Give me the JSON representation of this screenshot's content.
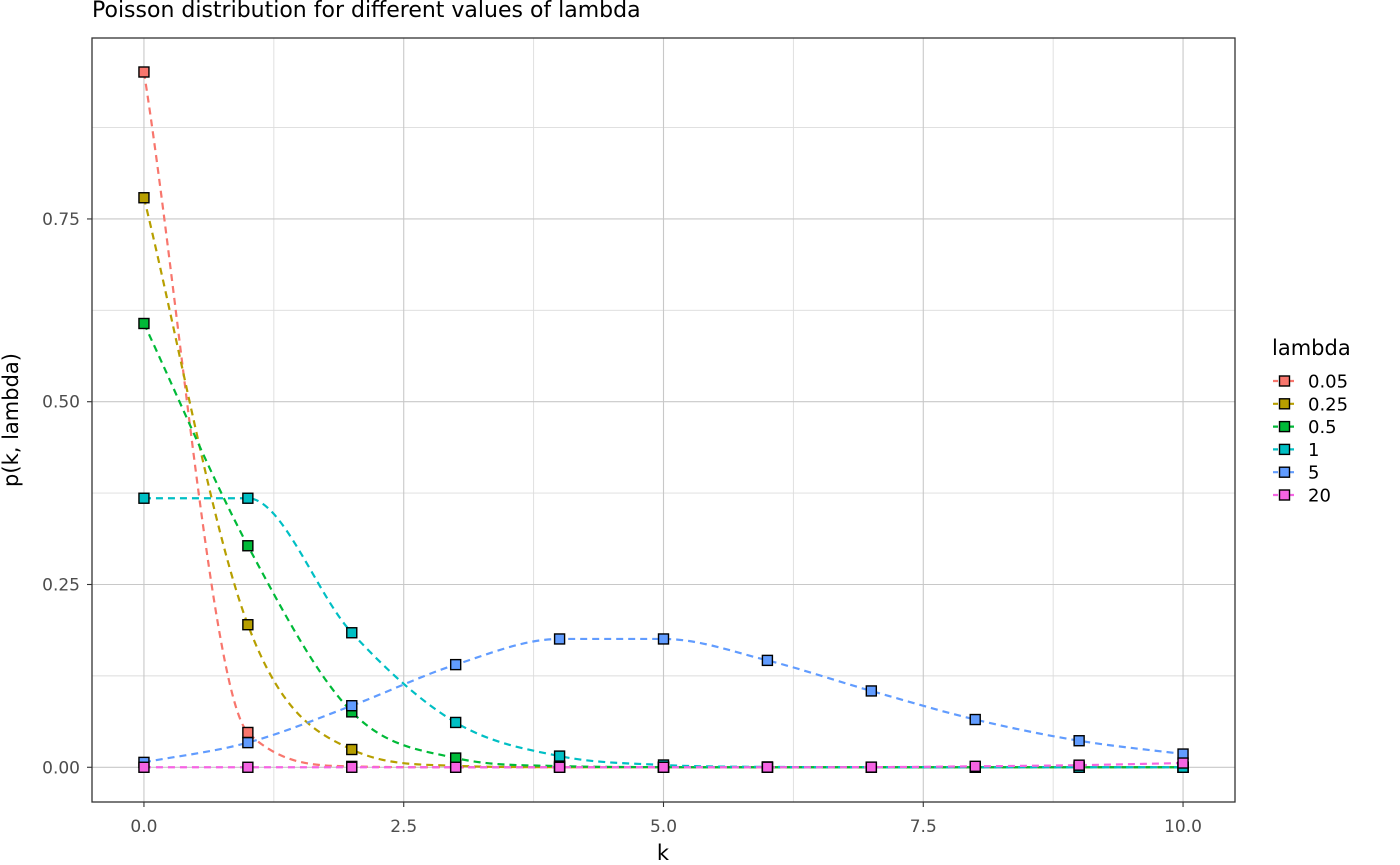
{
  "chart_data": {
    "type": "line",
    "title": "Poisson distribution for different values of lambda",
    "xlabel": "k",
    "ylabel": "p(k, lambda)",
    "xlim": [
      -0.5,
      10.5
    ],
    "ylim": [
      -0.0475,
      0.9975
    ],
    "x_ticks": [
      0,
      2.5,
      5,
      7.5,
      10
    ],
    "x_tick_labels": [
      "0.0",
      "2.5",
      "5.0",
      "7.5",
      "10.0"
    ],
    "y_ticks": [
      0,
      0.25,
      0.5,
      0.75
    ],
    "y_tick_labels": [
      "0.00",
      "0.25",
      "0.50",
      "0.75"
    ],
    "grid": true,
    "legend": {
      "title": "lambda",
      "position": "right"
    },
    "line_style": "dashed",
    "marker": "square",
    "x": [
      0,
      1,
      2,
      3,
      4,
      5,
      6,
      7,
      8,
      9,
      10
    ],
    "series": [
      {
        "name": "0.05",
        "color": "#F8766D",
        "values": [
          0.951,
          0.0476,
          0.0012,
          2e-05,
          0,
          0,
          0,
          0,
          0,
          0,
          0
        ]
      },
      {
        "name": "0.25",
        "color": "#B79F00",
        "values": [
          0.779,
          0.195,
          0.0243,
          0.002,
          0.0001,
          0,
          0,
          0,
          0,
          0,
          0
        ]
      },
      {
        "name": "0.5",
        "color": "#00BA38",
        "values": [
          0.607,
          0.303,
          0.0758,
          0.0126,
          0.0016,
          0.0002,
          0,
          0,
          0,
          0,
          0
        ]
      },
      {
        "name": "1",
        "color": "#00BFC4",
        "values": [
          0.368,
          0.368,
          0.184,
          0.0613,
          0.0153,
          0.0031,
          0.0005,
          0.0001,
          0,
          0,
          0
        ]
      },
      {
        "name": "5",
        "color": "#619CFF",
        "values": [
          0.0067,
          0.0337,
          0.0842,
          0.1404,
          0.1755,
          0.1755,
          0.1462,
          0.1044,
          0.0653,
          0.0363,
          0.0181
        ]
      },
      {
        "name": "20",
        "color": "#F564E3",
        "values": [
          0,
          0,
          0,
          0,
          0,
          0,
          0.0001,
          0.0002,
          0.0013,
          0.0029,
          0.0058
        ]
      }
    ]
  }
}
